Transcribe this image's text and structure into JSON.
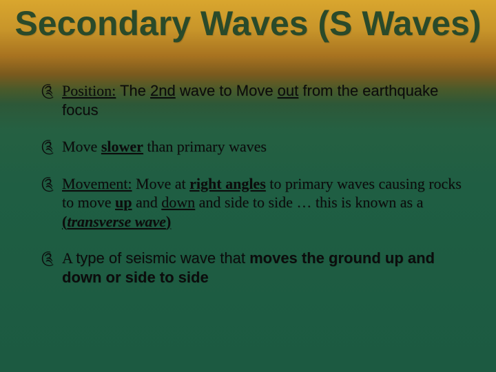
{
  "slide": {
    "title": "Secondary Waves (S Waves)",
    "title_color": "#2a4a2a",
    "title_fontsize": 50,
    "background_gradient": [
      "#d9a62e",
      "#c8952a",
      "#a87320",
      "#7a5a1e",
      "#4a5a2a",
      "#2d5838",
      "#256042",
      "#1f5e43",
      "#1c5a41"
    ],
    "bullet_icon": "༊",
    "body_fontsize": 22,
    "body_color": "#0c0c0c",
    "bullets": [
      {
        "runs": [
          {
            "t": "Position:",
            "u": true,
            "font": "serif"
          },
          {
            "t": "  The ",
            "font": "sans"
          },
          {
            "t": "2nd",
            "u": true,
            "font": "sans"
          },
          {
            "t": " wave to Move ",
            "font": "sans"
          },
          {
            "t": "out",
            "u": true,
            "font": "sans"
          },
          {
            "t": " from the earthquake focus",
            "font": "sans"
          }
        ]
      },
      {
        "runs": [
          {
            "t": "Move ",
            "font": "serif"
          },
          {
            "t": "slower",
            "b": true,
            "u": true,
            "font": "serif"
          },
          {
            "t": " than primary waves",
            "font": "serif"
          }
        ]
      },
      {
        "runs": [
          {
            "t": "Movement:",
            "u": true,
            "font": "serif"
          },
          {
            "t": "  Move at ",
            "font": "serif"
          },
          {
            "t": "right angles",
            "b": true,
            "u": true,
            "font": "serif"
          },
          {
            "t": " to primary waves causing rocks to move ",
            "font": "serif"
          },
          {
            "t": "up",
            "b": true,
            "u": true,
            "font": "serif"
          },
          {
            "t": " and ",
            "font": "serif"
          },
          {
            "t": "down",
            "u": true,
            "font": "serif"
          },
          {
            "t": " and side to side … this is known as a ",
            "font": "serif"
          },
          {
            "t": "(",
            "b": true,
            "u": true,
            "font": "serif"
          },
          {
            "t": "transverse wave",
            "b": true,
            "u": true,
            "i": true,
            "font": "serif"
          },
          {
            "t": ")",
            "b": true,
            "u": true,
            "font": "serif"
          }
        ]
      },
      {
        "runs": [
          {
            "t": "A ",
            "font": "serif"
          },
          {
            "t": "type of seismic wave that ",
            "font": "sans"
          },
          {
            "t": "moves the ground up and down or side to side",
            "b": true,
            "font": "sans"
          }
        ]
      }
    ]
  }
}
